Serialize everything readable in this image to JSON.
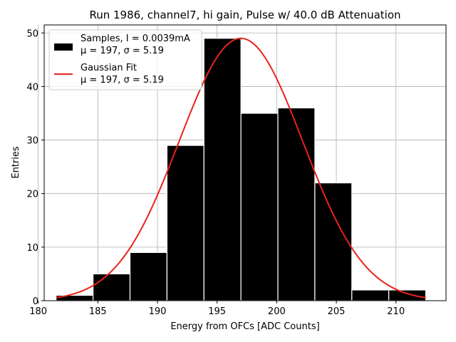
{
  "chart_data": {
    "type": "bar",
    "title": "Run 1986, channel7, hi gain, Pulse w/ 40.0 dB Attenuation",
    "xlabel": "Energy from OFCs [ADC Counts]",
    "ylabel": "Entries",
    "xlim": [
      180.5,
      214.2
    ],
    "ylim": [
      0,
      51.5
    ],
    "xticks": [
      180,
      185,
      190,
      195,
      200,
      205,
      210
    ],
    "yticks": [
      0,
      10,
      20,
      30,
      40,
      50
    ],
    "grid": true,
    "bins": [
      {
        "x0": 181.5,
        "x1": 184.6,
        "count": 1
      },
      {
        "x0": 184.6,
        "x1": 187.7,
        "count": 5
      },
      {
        "x0": 187.7,
        "x1": 190.8,
        "count": 9
      },
      {
        "x0": 190.8,
        "x1": 193.9,
        "count": 29
      },
      {
        "x0": 193.9,
        "x1": 197.0,
        "count": 49
      },
      {
        "x0": 197.0,
        "x1": 200.1,
        "count": 35
      },
      {
        "x0": 200.1,
        "x1": 203.2,
        "count": 36
      },
      {
        "x0": 203.2,
        "x1": 206.3,
        "count": 22
      },
      {
        "x0": 206.3,
        "x1": 209.4,
        "count": 2
      },
      {
        "x0": 209.4,
        "x1": 212.5,
        "count": 2
      }
    ],
    "fit": {
      "mu": 197,
      "sigma": 5.19,
      "amplitude": 49,
      "x_range": [
        181.5,
        212.5
      ]
    },
    "colors": {
      "bars": "#000000",
      "bar_edge": "#ffffff",
      "fit": "#e8231b",
      "grid": "#b0b0b0"
    },
    "legend": {
      "position": "top-left",
      "entries": [
        {
          "line1": "Samples, I = 0.0039mA",
          "line2": "μ = 197, σ = 5.19"
        },
        {
          "line1": "Gaussian Fit",
          "line2": "μ = 197, σ = 5.19"
        }
      ]
    }
  }
}
